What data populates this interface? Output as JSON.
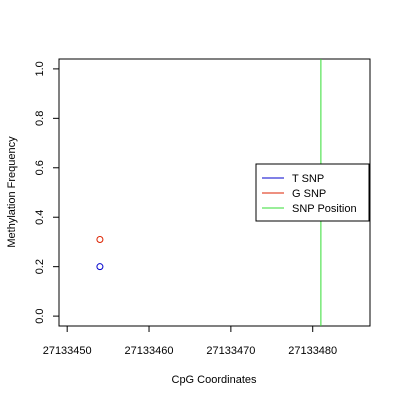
{
  "chart_data": {
    "type": "scatter",
    "title": "",
    "xlabel": "CpG Coordinates",
    "ylabel": "Methylation Frequency",
    "xlim": [
      27133449,
      27133487
    ],
    "ylim": [
      -0.04,
      1.04
    ],
    "x_ticks": [
      27133450,
      27133460,
      27133470,
      27133480
    ],
    "x_tick_labels": [
      "27133450",
      "27133460",
      "27133470",
      "27133480"
    ],
    "y_ticks": [
      0.0,
      0.2,
      0.4,
      0.6,
      0.8,
      1.0
    ],
    "y_tick_labels": [
      "0.0",
      "0.2",
      "0.4",
      "0.6",
      "0.8",
      "1.0"
    ],
    "grid": false,
    "legend_position": "right",
    "series": [
      {
        "name": "T SNP",
        "color": "#0000cd",
        "marker": "open-circle",
        "points": [
          {
            "x": 27133454,
            "y": 0.2
          }
        ]
      },
      {
        "name": "G SNP",
        "color": "#dd2200",
        "marker": "open-circle",
        "points": [
          {
            "x": 27133454,
            "y": 0.31
          }
        ]
      }
    ],
    "vlines": [
      {
        "name": "SNP Position",
        "color": "#33dd33",
        "x": 27133481
      }
    ]
  }
}
